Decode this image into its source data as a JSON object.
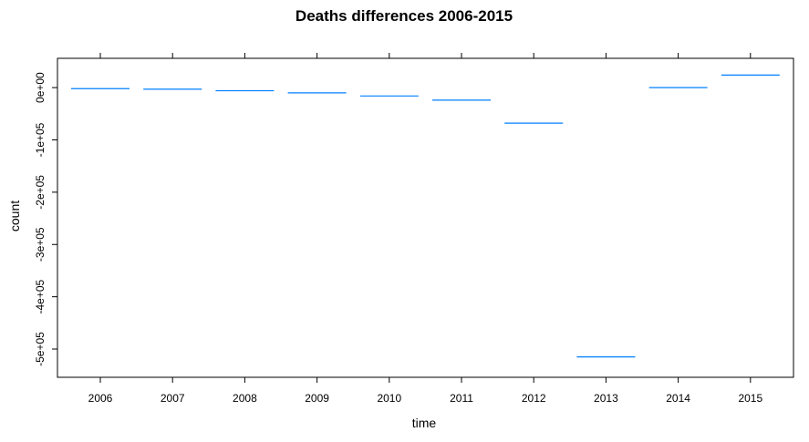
{
  "chart_data": {
    "type": "bar",
    "title": "Deaths differences 2006-2015",
    "xlabel": "time",
    "ylabel": "count",
    "categories": [
      "2006",
      "2007",
      "2008",
      "2009",
      "2010",
      "2011",
      "2012",
      "2013",
      "2014",
      "2015"
    ],
    "values": [
      -2000,
      -3000,
      -6000,
      -10000,
      -16000,
      -24000,
      -68000,
      -515000,
      0,
      24000
    ],
    "y_ticks": [
      0,
      -100000,
      -200000,
      -300000,
      -400000,
      -500000
    ],
    "y_tick_labels": [
      "0e+00",
      "-1e+05",
      "-2e+05",
      "-3e+05",
      "-4e+05",
      "-5e+05"
    ],
    "ylim": [
      -554000,
      56000
    ],
    "grid": false,
    "series_color": "#0080ff"
  }
}
